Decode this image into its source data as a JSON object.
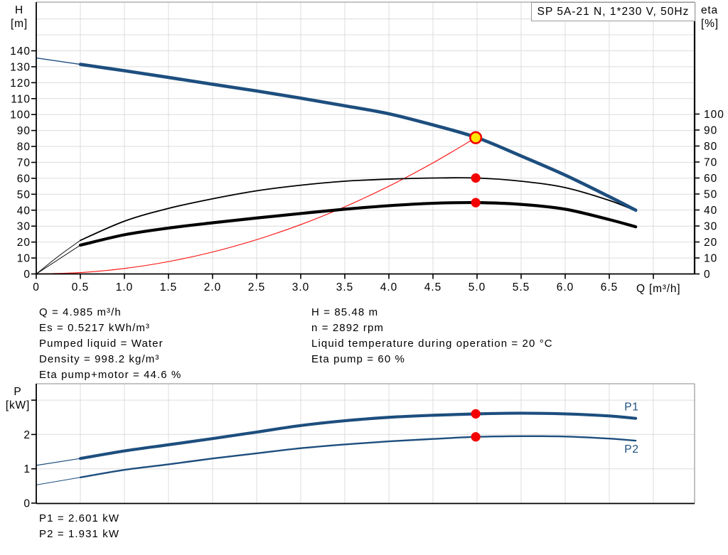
{
  "title_box": "SP 5A-21 N, 1*230 V, 50Hz",
  "colors": {
    "curve_blue": "#1d4e7e",
    "curve_black": "#000000",
    "curve_red": "#fb0d0c",
    "marker_red": "#f40000",
    "marker_yellow": "#ffe800",
    "grid": "#dcdcdc",
    "border": "#a0a0a0",
    "axis": "#000000",
    "text": "#000000"
  },
  "annotations": {
    "left": [
      "Q = 4.985 m³/h",
      "Es = 0.5217 kWh/m³",
      "Pumped liquid = Water",
      "Density = 998.2 kg/m³",
      "Eta pump+motor = 44.6 %"
    ],
    "right": [
      "H = 85.48 m",
      "n = 2892 rpm",
      "Liquid temperature during operation = 20 °C",
      "Eta pump = 60 %"
    ]
  },
  "power_readout": [
    "P1 = 2.601 kW",
    "P2 = 1.931 kW"
  ],
  "chart_data": [
    {
      "type": "line",
      "title": "SP 5A-21 N, 1*230 V, 50Hz",
      "xlabel": "Q [m³/h]",
      "left_axis": {
        "title": "H",
        "unit": "[m]",
        "ticks": [
          0,
          10,
          20,
          30,
          40,
          50,
          60,
          70,
          80,
          90,
          100,
          110,
          120,
          130,
          140
        ],
        "range": [
          0,
          170
        ]
      },
      "right_axis": {
        "title": "eta",
        "unit": "[%]",
        "ticks": [
          0,
          10,
          20,
          30,
          40,
          50,
          60,
          70,
          80,
          90,
          100
        ],
        "range": [
          0,
          100
        ]
      },
      "x_ticks": [
        0,
        0.5,
        1,
        1.5,
        2,
        2.5,
        3,
        3.5,
        4,
        4.5,
        5,
        5.5,
        6,
        6.5
      ],
      "x_ticks_unlabeled": [
        7
      ],
      "grid": true,
      "series": [
        {
          "name": "head",
          "axis": "H",
          "x": [
            0,
            0.5,
            1,
            1.5,
            2,
            2.5,
            3,
            3.5,
            4,
            4.5,
            5,
            5.5,
            6,
            6.5,
            6.8
          ],
          "y": [
            135.5,
            131.5,
            127.5,
            123.3,
            119,
            114.8,
            110.3,
            105.5,
            100.5,
            93.5,
            85.48,
            74,
            62,
            48.5,
            40
          ]
        },
        {
          "name": "eta-pump",
          "axis": "eta",
          "x": [
            0,
            0.25,
            0.5,
            1,
            1.5,
            2,
            2.5,
            3,
            3.5,
            4,
            4.5,
            5,
            5.5,
            6,
            6.5,
            6.8
          ],
          "y": [
            0,
            11,
            21,
            33,
            41,
            47,
            52,
            55.5,
            58,
            59.3,
            60,
            60,
            58,
            54,
            46,
            39.5
          ]
        },
        {
          "name": "eta-pump-motor",
          "axis": "eta",
          "x": [
            0,
            0.25,
            0.5,
            1,
            1.5,
            2,
            2.5,
            3,
            3.5,
            4,
            4.5,
            5,
            5.5,
            6,
            6.5,
            6.8
          ],
          "y": [
            0,
            9,
            18,
            24.5,
            28.7,
            32,
            35,
            37.8,
            40.5,
            42.7,
            44.2,
            44.6,
            43.5,
            40.5,
            34,
            29.5
          ]
        },
        {
          "name": "system-curve",
          "axis": "H",
          "x": [
            0,
            0.5,
            1,
            1.5,
            2,
            2.5,
            3,
            3.5,
            4,
            4.5,
            4.985
          ],
          "y": [
            0,
            0.86,
            3.44,
            7.74,
            13.76,
            21.5,
            30.96,
            42.14,
            55.04,
            69.66,
            85.48
          ]
        }
      ],
      "markers": [
        {
          "name": "duty-point",
          "style": "duty",
          "axis": "H",
          "x": 4.985,
          "y": 85.48
        },
        {
          "name": "eta-pump-point",
          "style": "dot",
          "axis": "eta",
          "x": 4.985,
          "y": 60
        },
        {
          "name": "eta-pump-motor-point",
          "style": "dot",
          "axis": "eta",
          "x": 4.985,
          "y": 44.6
        }
      ]
    },
    {
      "type": "line",
      "xlabel": "",
      "left_axis": {
        "title": "P",
        "unit": "[kW]",
        "ticks": [
          0,
          1,
          2
        ],
        "ticks_unlabeled": [
          3
        ],
        "range": [
          0,
          3.45
        ]
      },
      "x_ticks": [],
      "x_ticks_unlabeled": [
        0.5,
        1,
        1.5,
        2,
        2.5,
        3,
        3.5,
        4,
        4.5,
        5,
        5.5,
        6,
        6.5,
        7
      ],
      "grid": true,
      "series": [
        {
          "name": "P1",
          "axis": "P",
          "label": "P1",
          "x": [
            0,
            0.5,
            1,
            1.5,
            2,
            2.5,
            3,
            3.5,
            4,
            4.5,
            5,
            5.5,
            6,
            6.5,
            6.8
          ],
          "y": [
            1.1,
            1.3,
            1.52,
            1.7,
            1.88,
            2.07,
            2.26,
            2.4,
            2.5,
            2.56,
            2.601,
            2.62,
            2.6,
            2.54,
            2.47
          ]
        },
        {
          "name": "P2",
          "axis": "P",
          "label": "P2",
          "x": [
            0,
            0.5,
            1,
            1.5,
            2,
            2.5,
            3,
            3.5,
            4,
            4.5,
            5,
            5.5,
            6,
            6.5,
            6.8
          ],
          "y": [
            0.53,
            0.75,
            0.97,
            1.13,
            1.3,
            1.45,
            1.6,
            1.71,
            1.8,
            1.87,
            1.931,
            1.95,
            1.94,
            1.88,
            1.82
          ]
        }
      ],
      "markers": [
        {
          "name": "p1-point",
          "style": "dot",
          "axis": "P",
          "x": 4.985,
          "y": 2.601
        },
        {
          "name": "p2-point",
          "style": "dot",
          "axis": "P",
          "x": 4.985,
          "y": 1.931
        }
      ]
    }
  ]
}
